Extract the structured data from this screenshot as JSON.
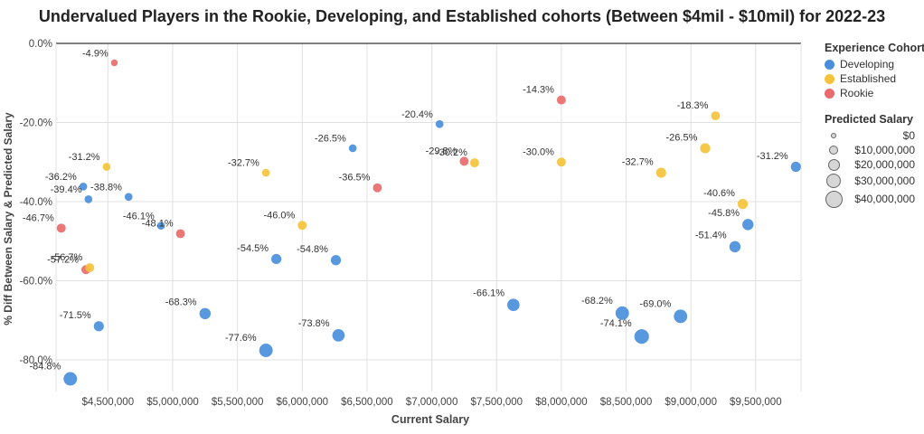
{
  "chart_data": {
    "type": "scatter",
    "title": "Undervalued Players in the Rookie, Developing, and Established cohorts (Between $4mil - $10mil) for 2022-23",
    "xlabel": "Current Salary",
    "ylabel": "% Diff Between Salary & Predicted Salary",
    "xlim": [
      4100000,
      9850000
    ],
    "ylim": [
      -88,
      0
    ],
    "x_ticks": [
      "$4,500,000",
      "$5,000,000",
      "$5,500,000",
      "$6,000,000",
      "$6,500,000",
      "$7,000,000",
      "$7,500,000",
      "$8,000,000",
      "$8,500,000",
      "$9,000,000",
      "$9,500,000"
    ],
    "x_tick_values": [
      4500000,
      5000000,
      5500000,
      6000000,
      6500000,
      7000000,
      7500000,
      8000000,
      8500000,
      9000000,
      9500000
    ],
    "y_ticks": [
      "0.0%",
      "-20.0%",
      "-40.0%",
      "-60.0%",
      "-80.0%"
    ],
    "y_tick_values": [
      0,
      -20,
      -40,
      -60,
      -80
    ],
    "grid": true,
    "legend_position": "right",
    "colors": {
      "Developing": "#4a8fdc",
      "Established": "#f5c33b",
      "Rookie": "#e96b6b"
    },
    "points": [
      {
        "cohort": "Rookie",
        "x": 4550000,
        "y": -4.9,
        "label": "-4.9%",
        "size": 6
      },
      {
        "cohort": "Established",
        "x": 4490000,
        "y": -31.2,
        "label": "-31.2%",
        "size": 7
      },
      {
        "cohort": "Developing",
        "x": 4310000,
        "y": -36.2,
        "label": "-36.2%",
        "size": 7
      },
      {
        "cohort": "Developing",
        "x": 4350000,
        "y": -39.4,
        "label": "-39.4%",
        "size": 7
      },
      {
        "cohort": "Developing",
        "x": 4660000,
        "y": -38.8,
        "label": "-38.8%",
        "size": 7
      },
      {
        "cohort": "Rookie",
        "x": 4140000,
        "y": -46.7,
        "label": "-46.7%",
        "size": 8
      },
      {
        "cohort": "Developing",
        "x": 4910000,
        "y": -46.1,
        "label": "-46.1%",
        "size": 7
      },
      {
        "cohort": "Rookie",
        "x": 5060000,
        "y": -48.1,
        "label": "-48.1%",
        "size": 8
      },
      {
        "cohort": "Rookie",
        "x": 4330000,
        "y": -57.2,
        "label": "-57.2%",
        "size": 8
      },
      {
        "cohort": "Established",
        "x": 4360000,
        "y": -56.7,
        "label": "-56.7%",
        "size": 8
      },
      {
        "cohort": "Developing",
        "x": 4430000,
        "y": -71.5,
        "label": "-71.5%",
        "size": 9
      },
      {
        "cohort": "Developing",
        "x": 4210000,
        "y": -84.8,
        "label": "-84.8%",
        "size": 12
      },
      {
        "cohort": "Developing",
        "x": 5250000,
        "y": -68.3,
        "label": "-68.3%",
        "size": 10
      },
      {
        "cohort": "Established",
        "x": 5720000,
        "y": -32.7,
        "label": "-32.7%",
        "size": 7
      },
      {
        "cohort": "Developing",
        "x": 5800000,
        "y": -54.5,
        "label": "-54.5%",
        "size": 9
      },
      {
        "cohort": "Developing",
        "x": 5720000,
        "y": -77.6,
        "label": "-77.6%",
        "size": 12
      },
      {
        "cohort": "Established",
        "x": 6000000,
        "y": -46.0,
        "label": "-46.0%",
        "size": 8
      },
      {
        "cohort": "Developing",
        "x": 6260000,
        "y": -54.8,
        "label": "-54.8%",
        "size": 9
      },
      {
        "cohort": "Developing",
        "x": 6280000,
        "y": -73.8,
        "label": "-73.8%",
        "size": 11
      },
      {
        "cohort": "Developing",
        "x": 6390000,
        "y": -26.5,
        "label": "-26.5%",
        "size": 7
      },
      {
        "cohort": "Rookie",
        "x": 6580000,
        "y": -36.5,
        "label": "-36.5%",
        "size": 8
      },
      {
        "cohort": "Developing",
        "x": 7060000,
        "y": -20.4,
        "label": "-20.4%",
        "size": 7
      },
      {
        "cohort": "Rookie",
        "x": 7250000,
        "y": -29.8,
        "label": "-29.8%",
        "size": 8
      },
      {
        "cohort": "Established",
        "x": 7330000,
        "y": -30.2,
        "label": "-30.2%",
        "size": 8
      },
      {
        "cohort": "Developing",
        "x": 7630000,
        "y": -66.1,
        "label": "-66.1%",
        "size": 11
      },
      {
        "cohort": "Rookie",
        "x": 8000000,
        "y": -14.3,
        "label": "-14.3%",
        "size": 8
      },
      {
        "cohort": "Established",
        "x": 8000000,
        "y": -30.0,
        "label": "-30.0%",
        "size": 8
      },
      {
        "cohort": "Developing",
        "x": 8470000,
        "y": -68.2,
        "label": "-68.2%",
        "size": 12
      },
      {
        "cohort": "Developing",
        "x": 8620000,
        "y": -74.1,
        "label": "-74.1%",
        "size": 13
      },
      {
        "cohort": "Established",
        "x": 8770000,
        "y": -32.7,
        "label": "-32.7%",
        "size": 9
      },
      {
        "cohort": "Developing",
        "x": 8920000,
        "y": -69.0,
        "label": "-69.0%",
        "size": 12
      },
      {
        "cohort": "Established",
        "x": 9110000,
        "y": -26.5,
        "label": "-26.5%",
        "size": 9
      },
      {
        "cohort": "Established",
        "x": 9190000,
        "y": -18.3,
        "label": "-18.3%",
        "size": 8
      },
      {
        "cohort": "Developing",
        "x": 9340000,
        "y": -51.4,
        "label": "-51.4%",
        "size": 10
      },
      {
        "cohort": "Established",
        "x": 9400000,
        "y": -40.6,
        "label": "-40.6%",
        "size": 9
      },
      {
        "cohort": "Developing",
        "x": 9440000,
        "y": -45.8,
        "label": "-45.8%",
        "size": 10
      },
      {
        "cohort": "Developing",
        "x": 9810000,
        "y": -31.2,
        "label": "-31.2%",
        "size": 9
      }
    ]
  },
  "legend": {
    "cohort_title": "Experience Cohort",
    "cohorts": [
      {
        "name": "Developing",
        "color": "#4a8fdc"
      },
      {
        "name": "Established",
        "color": "#f5c33b"
      },
      {
        "name": "Rookie",
        "color": "#e96b6b"
      }
    ],
    "size_title": "Predicted Salary",
    "sizes": [
      {
        "label": "$0",
        "r": 3
      },
      {
        "label": "$10,000,000",
        "r": 5
      },
      {
        "label": "$20,000,000",
        "r": 6.5
      },
      {
        "label": "$30,000,000",
        "r": 8
      },
      {
        "label": "$40,000,000",
        "r": 9.5
      }
    ]
  }
}
